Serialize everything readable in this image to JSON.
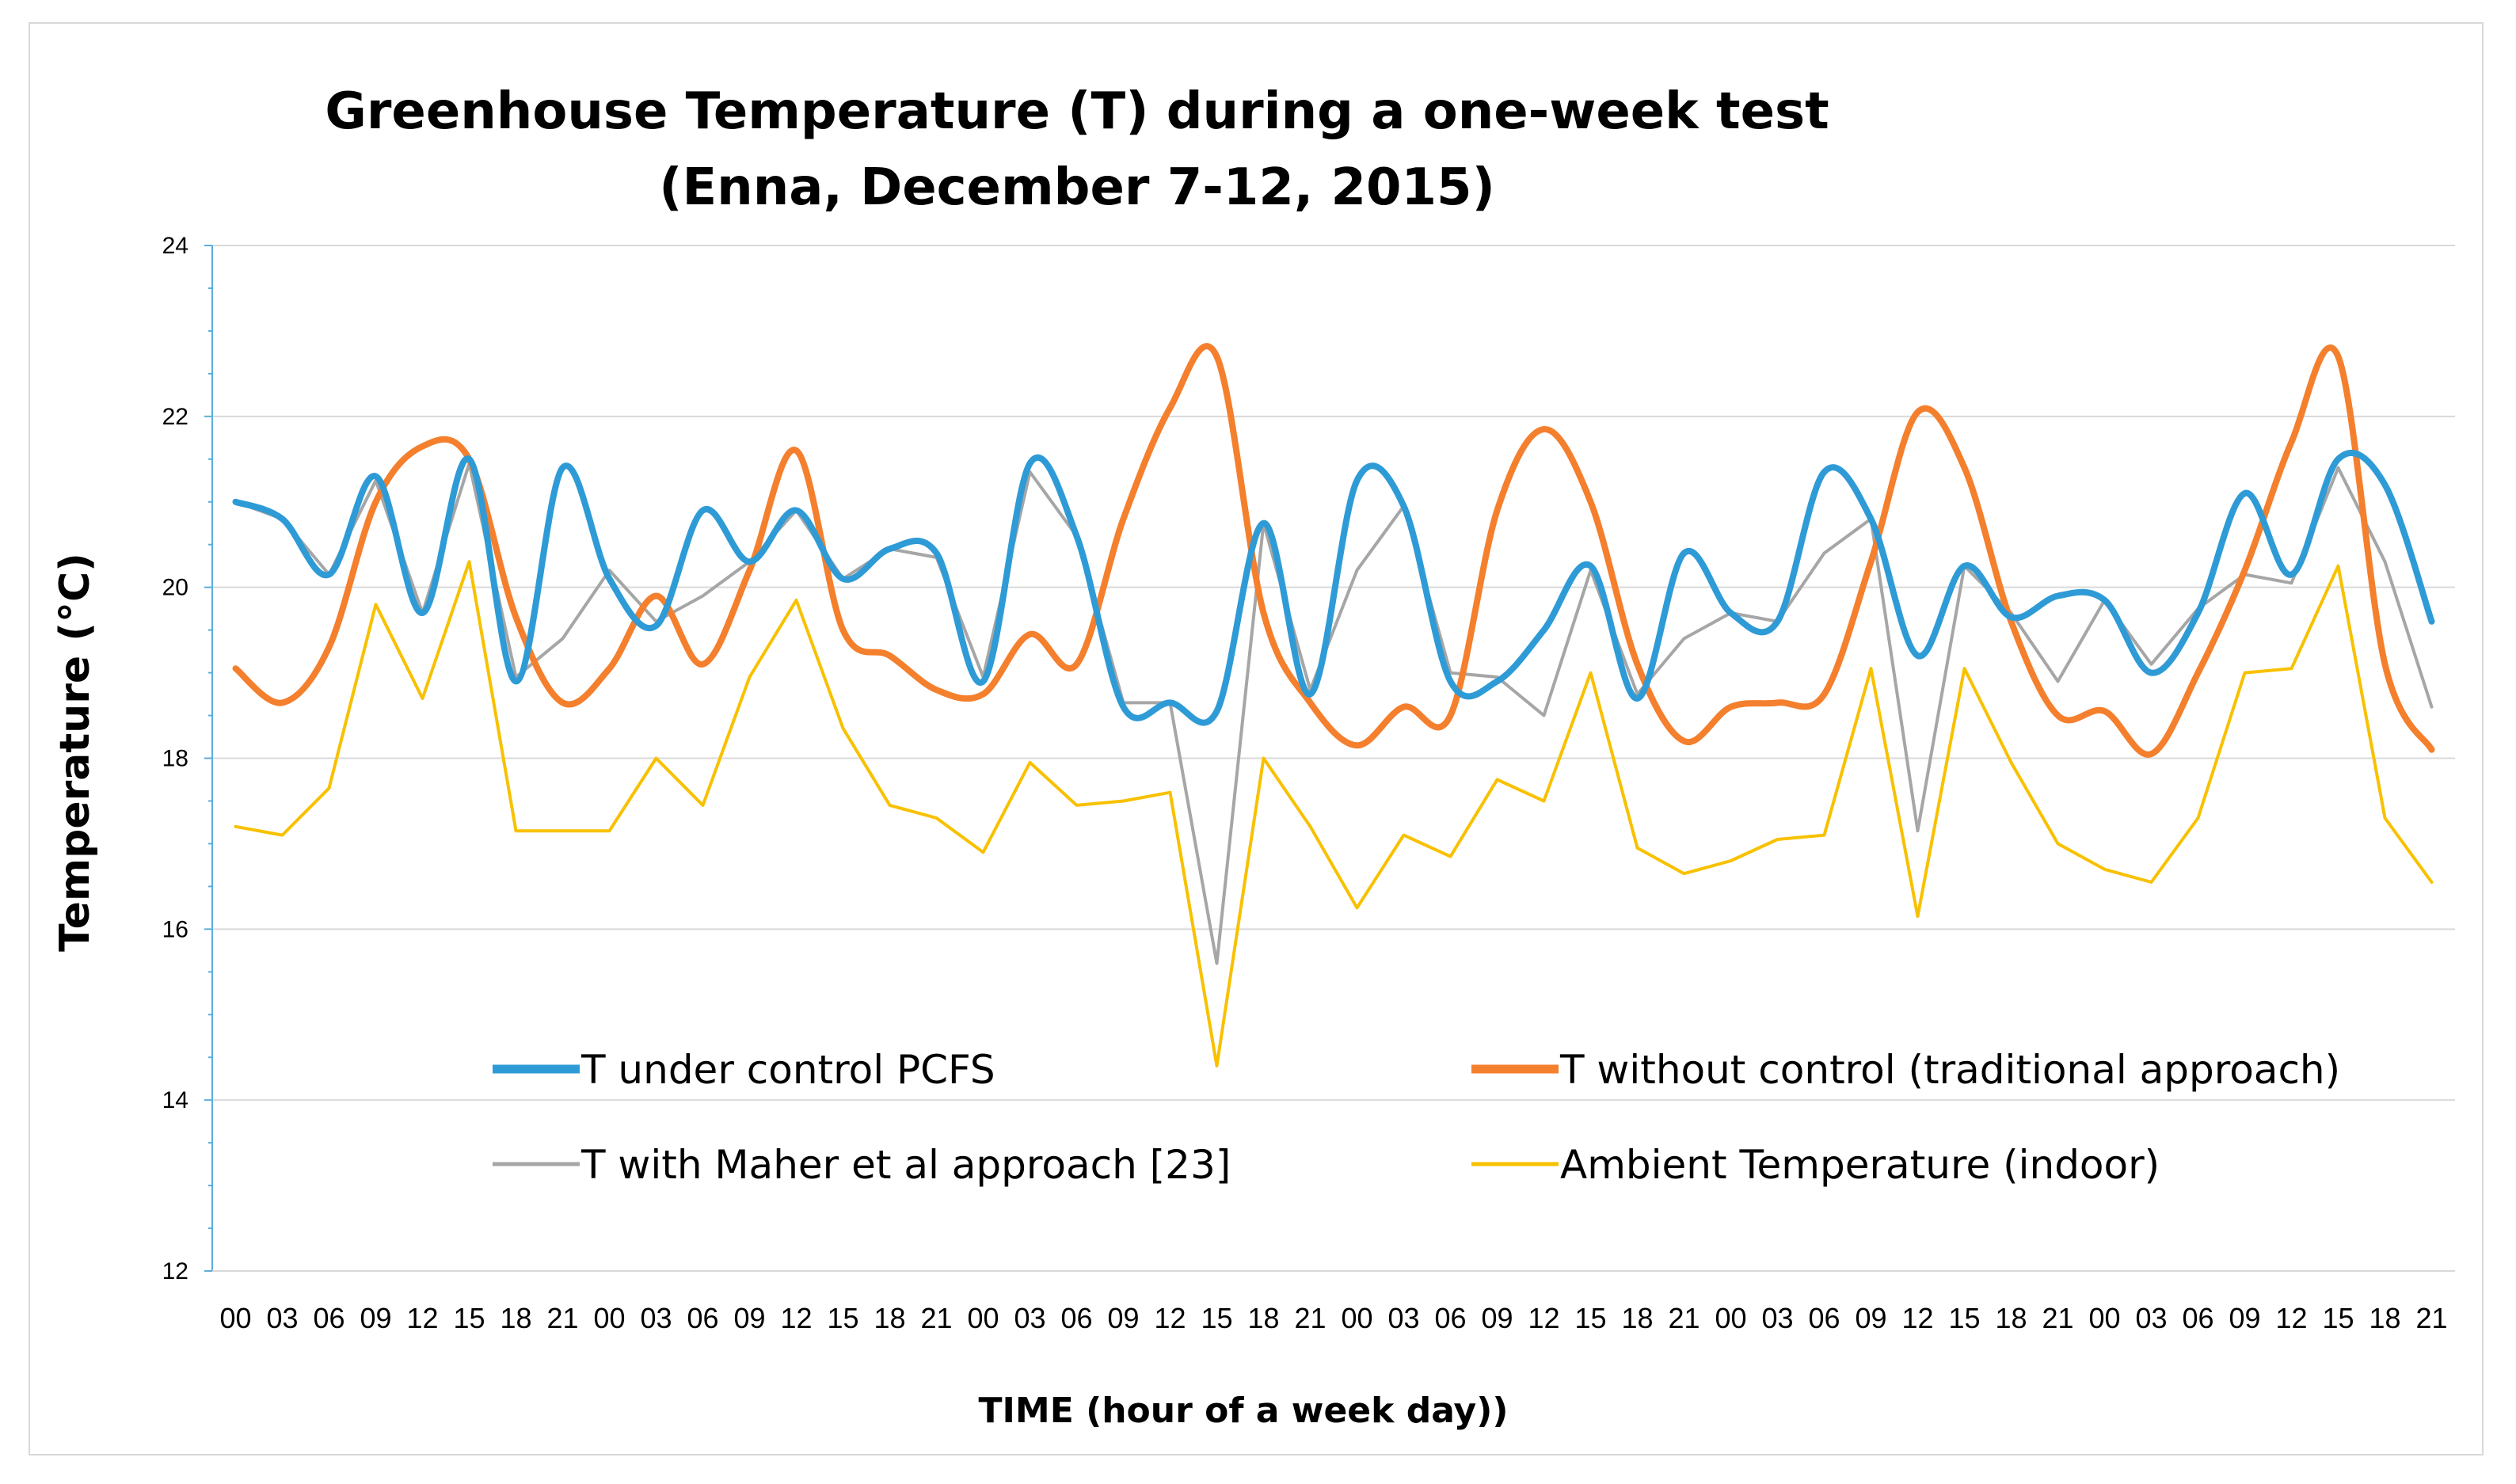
{
  "chart_data": {
    "type": "line",
    "title": [
      "Greenhouse  Temperature (T) during a one-week test",
      "(Enna, December 7-12, 2015)"
    ],
    "xlabel": "TIME (hour of a week day))",
    "ylabel": "Temperature (°C)",
    "ylim": [
      12,
      24
    ],
    "yticks": [
      12,
      14,
      16,
      18,
      20,
      22,
      24
    ],
    "grid": true,
    "legend_position": "bottom-inside",
    "categories": [
      "00",
      "03",
      "06",
      "09",
      "12",
      "15",
      "18",
      "21",
      "00",
      "03",
      "06",
      "09",
      "12",
      "15",
      "18",
      "21",
      "00",
      "03",
      "06",
      "09",
      "12",
      "15",
      "18",
      "21",
      "00",
      "03",
      "06",
      "09",
      "12",
      "15",
      "18",
      "21",
      "00",
      "03",
      "06",
      "09",
      "12",
      "15",
      "18",
      "21",
      "00",
      "03",
      "06",
      "09",
      "12",
      "15",
      "18",
      "21"
    ],
    "series": [
      {
        "name": "T under control PCFS",
        "color": "#2e9bd6",
        "values": [
          21.0,
          20.8,
          20.15,
          21.3,
          19.7,
          21.5,
          18.9,
          21.4,
          20.1,
          19.55,
          20.9,
          20.3,
          20.9,
          20.1,
          20.45,
          20.4,
          18.9,
          21.45,
          20.6,
          18.6,
          18.65,
          18.55,
          20.75,
          18.75,
          21.25,
          20.95,
          18.9,
          18.9,
          19.5,
          20.25,
          18.7,
          20.4,
          19.7,
          19.6,
          21.35,
          20.8,
          19.2,
          20.25,
          19.65,
          19.9,
          19.85,
          19.0,
          19.7,
          21.1,
          20.15,
          21.5,
          21.2,
          19.6
        ]
      },
      {
        "name": "T without control (traditional approach)",
        "color": "#f47f2d",
        "values": [
          19.05,
          18.65,
          19.3,
          21.0,
          21.65,
          21.5,
          19.65,
          18.65,
          19.05,
          19.9,
          19.1,
          20.2,
          21.6,
          19.5,
          19.2,
          18.8,
          18.75,
          19.45,
          19.1,
          20.8,
          22.1,
          22.7,
          19.7,
          18.65,
          18.15,
          18.6,
          18.5,
          20.9,
          21.85,
          21.0,
          19.1,
          18.2,
          18.6,
          18.65,
          18.75,
          20.3,
          22.05,
          21.4,
          19.6,
          18.5,
          18.55,
          18.05,
          19.0,
          20.2,
          21.7,
          22.7,
          19.1,
          18.1
        ]
      },
      {
        "name": "T with Maher et al approach [23]",
        "color": "#a6a6a6",
        "values": [
          21.0,
          20.8,
          20.15,
          21.25,
          19.7,
          21.45,
          18.95,
          19.4,
          20.2,
          19.6,
          19.9,
          20.3,
          20.9,
          20.1,
          20.45,
          20.35,
          18.95,
          21.35,
          20.6,
          18.65,
          18.65,
          15.6,
          20.75,
          18.8,
          20.2,
          20.95,
          19.0,
          18.95,
          18.5,
          20.2,
          18.75,
          19.4,
          19.7,
          19.6,
          20.4,
          20.8,
          17.15,
          20.25,
          19.7,
          18.9,
          19.85,
          19.1,
          19.75,
          20.15,
          20.05,
          21.4,
          20.3,
          18.6
        ]
      },
      {
        "name": "Ambient Temperature (indoor)",
        "color": "#f8c100",
        "values": [
          17.2,
          17.1,
          17.65,
          19.8,
          18.7,
          20.3,
          17.15,
          17.15,
          17.15,
          18.0,
          17.45,
          18.95,
          19.85,
          18.35,
          17.45,
          17.3,
          16.9,
          17.95,
          17.45,
          17.5,
          17.6,
          14.4,
          18.0,
          17.2,
          16.25,
          17.1,
          16.85,
          17.75,
          17.5,
          19.0,
          16.95,
          16.65,
          16.8,
          17.05,
          17.1,
          19.05,
          16.15,
          19.05,
          17.95,
          17.0,
          16.7,
          16.55,
          17.3,
          19.0,
          19.05,
          20.25,
          17.3,
          16.55
        ]
      }
    ]
  }
}
